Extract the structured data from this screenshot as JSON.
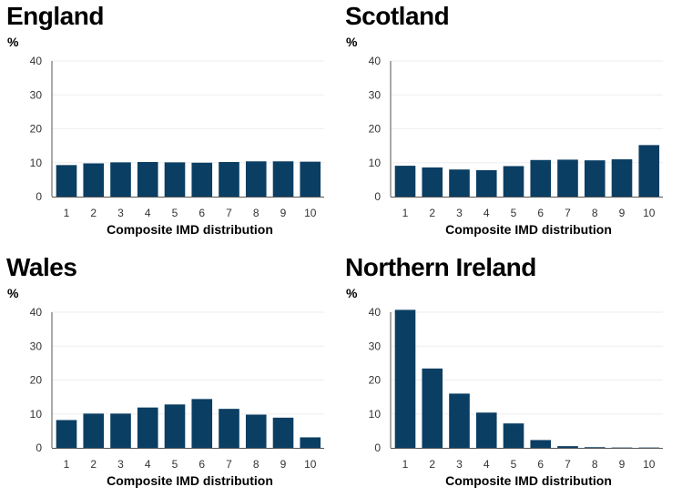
{
  "chart_data": [
    {
      "type": "bar",
      "title": "England",
      "ylabel": "%",
      "xlabel": "Composite IMD distribution",
      "categories": [
        "1",
        "2",
        "3",
        "4",
        "5",
        "6",
        "7",
        "8",
        "9",
        "10"
      ],
      "values": [
        9.3,
        9.8,
        10.1,
        10.2,
        10.1,
        10.0,
        10.2,
        10.4,
        10.4,
        10.3
      ],
      "ylim": [
        0,
        40
      ],
      "yticks": [
        "0",
        "10",
        "20",
        "30",
        "40"
      ],
      "color": "#0b3e63"
    },
    {
      "type": "bar",
      "title": "Scotland",
      "ylabel": "%",
      "xlabel": "Composite IMD distribution",
      "categories": [
        "1",
        "2",
        "3",
        "4",
        "5",
        "6",
        "7",
        "8",
        "9",
        "10"
      ],
      "values": [
        9.1,
        8.6,
        8.0,
        7.8,
        9.0,
        10.8,
        10.9,
        10.7,
        11.0,
        15.2
      ],
      "ylim": [
        0,
        40
      ],
      "yticks": [
        "0",
        "10",
        "20",
        "30",
        "40"
      ],
      "color": "#0b3e63"
    },
    {
      "type": "bar",
      "title": "Wales",
      "ylabel": "%",
      "xlabel": "Composite IMD distribution",
      "categories": [
        "1",
        "2",
        "3",
        "4",
        "5",
        "6",
        "7",
        "8",
        "9",
        "10"
      ],
      "values": [
        8.2,
        10.1,
        10.1,
        11.9,
        12.8,
        14.4,
        11.5,
        9.8,
        8.9,
        3.1
      ],
      "ylim": [
        0,
        40
      ],
      "yticks": [
        "0",
        "10",
        "20",
        "30",
        "40"
      ],
      "color": "#0b3e63"
    },
    {
      "type": "bar",
      "title": "Northern Ireland",
      "ylabel": "%",
      "xlabel": "Composite IMD distribution",
      "categories": [
        "1",
        "2",
        "3",
        "4",
        "5",
        "6",
        "7",
        "8",
        "9",
        "10"
      ],
      "values": [
        40.7,
        23.4,
        16.0,
        10.4,
        7.2,
        2.3,
        0.5,
        0.2,
        0.1,
        0.1
      ],
      "ylim": [
        0,
        40
      ],
      "yticks": [
        "0",
        "10",
        "20",
        "30",
        "40"
      ],
      "color": "#0b3e63"
    }
  ]
}
